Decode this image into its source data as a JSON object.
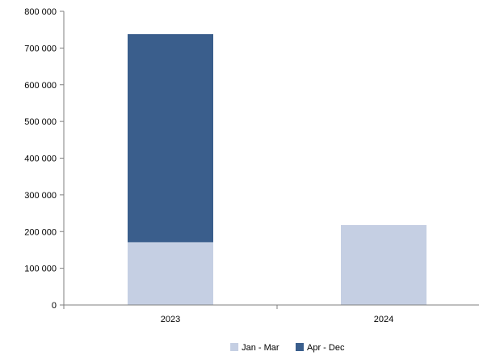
{
  "chart_data": {
    "type": "bar",
    "stacked": true,
    "title": "",
    "xlabel": "",
    "ylabel": "",
    "categories": [
      "2023",
      "2024"
    ],
    "series": [
      {
        "name": "Jan - Mar",
        "color": "#c5cfe3",
        "values": [
          171000,
          218000
        ]
      },
      {
        "name": "Apr - Dec",
        "color": "#3a5e8c",
        "values": [
          567000,
          0
        ]
      }
    ],
    "ylim": [
      0,
      800000
    ],
    "y_ticks": [
      0,
      100000,
      200000,
      300000,
      400000,
      500000,
      600000,
      700000,
      800000
    ],
    "y_tick_labels": [
      "0",
      "100 000",
      "200 000",
      "300 000",
      "400 000",
      "500 000",
      "600 000",
      "700 000",
      "800 000"
    ],
    "grid": false,
    "legend_position": "bottom"
  }
}
